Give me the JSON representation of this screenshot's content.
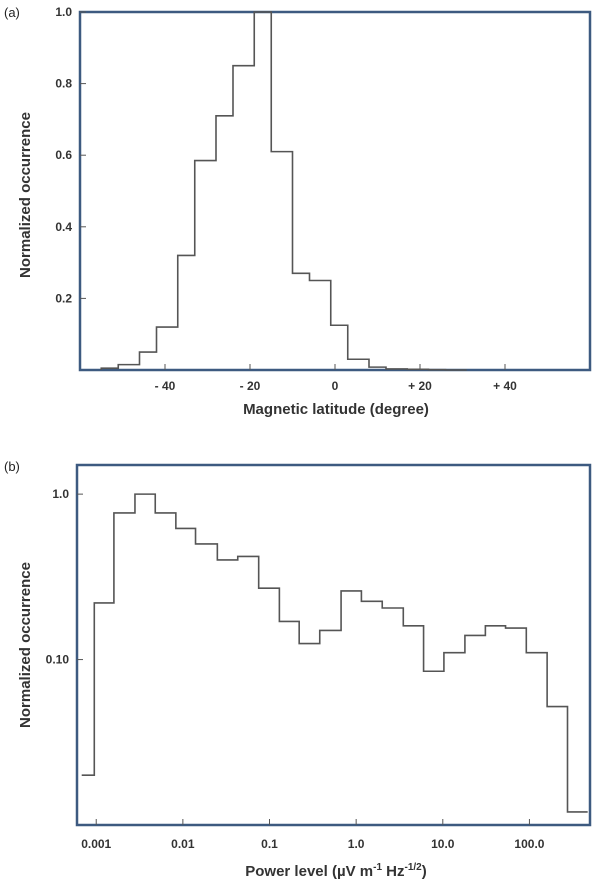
{
  "chart_data": [
    {
      "type": "histogram-step",
      "panel_label": "(a)",
      "title": "",
      "xlabel": "Magnetic latitude (degree)",
      "ylabel": "Normalized occurrence",
      "xlim": [
        -60,
        60
      ],
      "ylim": [
        0,
        1.0
      ],
      "xticks": [
        -40,
        -20,
        0,
        20,
        40
      ],
      "xtick_labels": [
        "- 40",
        "- 20",
        "0",
        "+ 20",
        "+ 40"
      ],
      "yticks": [
        0.2,
        0.4,
        0.6,
        0.8,
        1.0
      ],
      "ytick_labels": [
        "0.2",
        "0.4",
        "0.6",
        "0.8",
        "1.0"
      ],
      "bin_edges": [
        -55,
        -51,
        -46,
        -42,
        -37,
        -33,
        -28,
        -24,
        -19,
        -15,
        -10,
        -6,
        -1,
        3,
        8,
        12,
        17,
        22,
        26,
        31
      ],
      "values": [
        0.005,
        0.015,
        0.05,
        0.12,
        0.32,
        0.585,
        0.71,
        0.85,
        1.0,
        0.61,
        0.27,
        0.25,
        0.125,
        0.03,
        0.008,
        0.003,
        0.002,
        0.001,
        0.0
      ],
      "line_color": "#555555",
      "frame_color": "#3d5a80"
    },
    {
      "type": "histogram-step",
      "panel_label": "(b)",
      "title": "",
      "xlabel": "Power level (µV m-1 Hz-1/2)",
      "ylabel": "Normalized occurrence",
      "xscale": "log",
      "yscale": "log",
      "xlim": [
        0.0006,
        500
      ],
      "ylim": [
        0.01,
        1.5
      ],
      "xticks": [
        0.001,
        0.01,
        0.1,
        1,
        10,
        100
      ],
      "xtick_labels": [
        "0.001",
        "0.01",
        "0.1",
        "1.0",
        "10.0",
        "100.0"
      ],
      "yticks": [
        1.0,
        0.1
      ],
      "ytick_labels": [
        "1.0",
        "0.10"
      ],
      "bin_edges": [
        0.00068,
        0.00095,
        0.0016,
        0.0028,
        0.0048,
        0.0083,
        0.014,
        0.025,
        0.043,
        0.075,
        0.13,
        0.22,
        0.38,
        0.67,
        1.15,
        2.0,
        3.5,
        6.0,
        10.3,
        18,
        31,
        53,
        92,
        160,
        275,
        470
      ],
      "values": [
        0.02,
        0.22,
        0.77,
        1.0,
        0.77,
        0.62,
        0.5,
        0.4,
        0.42,
        0.27,
        0.17,
        0.125,
        0.15,
        0.26,
        0.225,
        0.205,
        0.16,
        0.085,
        0.11,
        0.14,
        0.16,
        0.155,
        0.11,
        0.052,
        0.012
      ],
      "line_color": "#555555",
      "frame_color": "#3d5a80"
    }
  ]
}
